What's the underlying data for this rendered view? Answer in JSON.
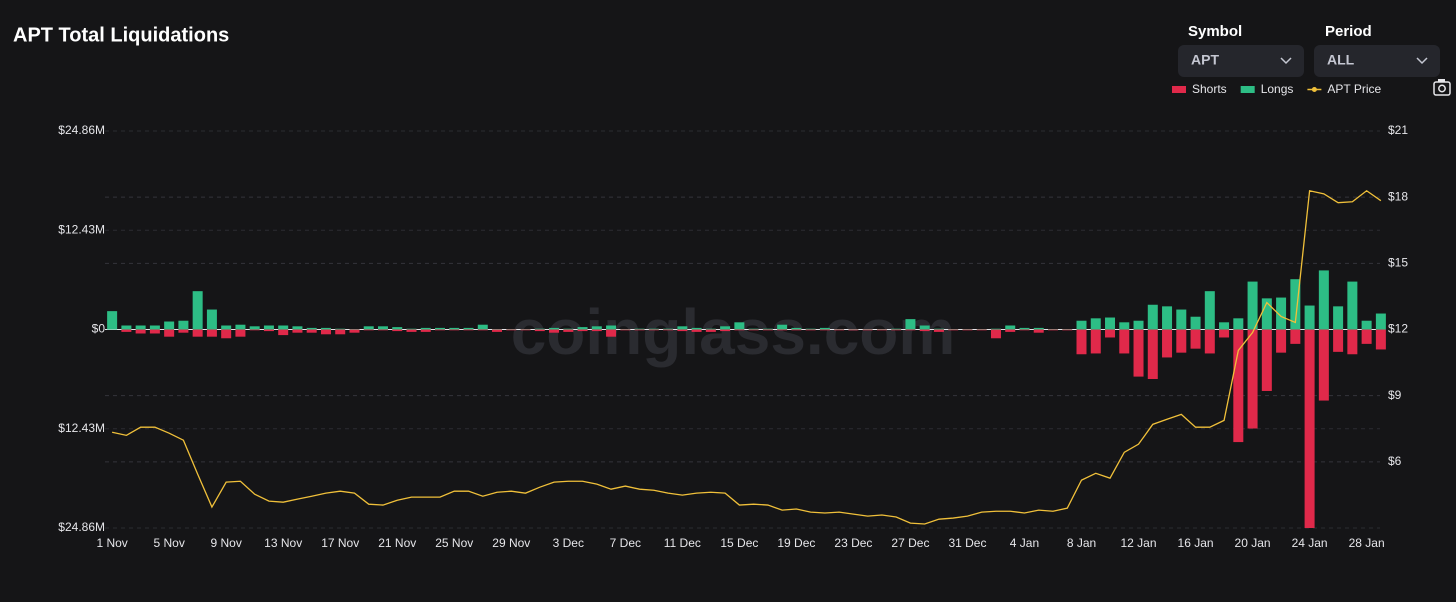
{
  "chart_data": {
    "type": "bar",
    "title": "APT Total Liquidations",
    "watermark": "coinglass.com",
    "categories": [
      "1 Nov",
      null,
      null,
      null,
      "5 Nov",
      null,
      null,
      null,
      "9 Nov",
      null,
      null,
      null,
      "13 Nov",
      null,
      null,
      null,
      "17 Nov",
      null,
      null,
      null,
      "21 Nov",
      null,
      null,
      null,
      "25 Nov",
      null,
      null,
      null,
      "29 Nov",
      null,
      null,
      null,
      "3 Dec",
      null,
      null,
      null,
      "7 Dec",
      null,
      null,
      null,
      "11 Dec",
      null,
      null,
      null,
      "15 Dec",
      null,
      null,
      null,
      "19 Dec",
      null,
      null,
      null,
      "23 Dec",
      null,
      null,
      null,
      "27 Dec",
      null,
      null,
      null,
      "31 Dec",
      null,
      null,
      null,
      "4 Jan",
      null,
      null,
      null,
      "8 Jan",
      null,
      null,
      null,
      "12 Jan",
      null,
      null,
      null,
      "16 Jan",
      null,
      null,
      null,
      "20 Jan",
      null,
      null,
      null,
      "24 Jan",
      null,
      null,
      null,
      "28 Jan",
      null
    ],
    "series": [
      {
        "name": "Shorts",
        "type": "bar",
        "color": "#e0294a",
        "values": [
          0,
          -0.3,
          -0.5,
          -0.5,
          -0.9,
          -0.4,
          -0.9,
          -0.9,
          -1.1,
          -0.9,
          -0.1,
          -0.2,
          -0.7,
          -0.4,
          -0.4,
          -0.6,
          -0.6,
          -0.4,
          -0.1,
          -0.1,
          -0.2,
          -0.3,
          -0.3,
          -0.1,
          -0.1,
          -0.1,
          -0.1,
          -0.3,
          -0.1,
          -0.1,
          -0.2,
          -0.4,
          -0.3,
          -0.2,
          -0.2,
          -0.9,
          -0.1,
          -0.1,
          -0.1,
          -0.1,
          -0.2,
          -0.3,
          -0.3,
          -0.2,
          -0.1,
          -0.1,
          -0.1,
          -0.1,
          -0.1,
          -0.1,
          -0.1,
          -0.1,
          -0.1,
          -0.1,
          -0.1,
          -0.1,
          -0.1,
          -0.2,
          -0.3,
          -0.1,
          -0.1,
          -0.1,
          -1.1,
          -0.3,
          -0.1,
          -0.4,
          -0.1,
          -0.1,
          -3.1,
          -3.0,
          -1.0,
          -3.0,
          -5.9,
          -6.2,
          -3.5,
          -2.9,
          -2.4,
          -3.0,
          -1.0,
          -14.1,
          -12.4,
          -7.7,
          -2.9,
          -1.8,
          -24.86,
          -8.9,
          -2.8,
          -3.1,
          -1.8,
          -2.5
        ]
      },
      {
        "name": "Longs",
        "type": "bar",
        "color": "#2dbd85",
        "values": [
          2.3,
          0.5,
          0.5,
          0.5,
          1.0,
          1.1,
          4.8,
          2.5,
          0.5,
          0.6,
          0.4,
          0.5,
          0.5,
          0.4,
          0.2,
          0.2,
          0.1,
          0.05,
          0.4,
          0.4,
          0.3,
          0.1,
          0.2,
          0.2,
          0.2,
          0.2,
          0.6,
          0.05,
          0.05,
          0.05,
          0.1,
          0.2,
          0.1,
          0.3,
          0.4,
          0.5,
          0.05,
          0.1,
          0.1,
          0.1,
          0.4,
          0.2,
          0.1,
          0.4,
          0.9,
          0.1,
          0.1,
          0.6,
          0.2,
          0.1,
          0.2,
          0.05,
          0.05,
          0.05,
          0.05,
          0.1,
          1.3,
          0.5,
          0.1,
          0.05,
          0.05,
          0.05,
          0.1,
          0.5,
          0.2,
          0.2,
          0.05,
          0.05,
          1.1,
          1.4,
          1.5,
          0.9,
          1.1,
          3.1,
          2.9,
          2.5,
          1.6,
          4.8,
          0.9,
          1.4,
          6.0,
          3.9,
          4.0,
          6.3,
          3.0,
          7.4,
          2.9,
          6.0,
          1.1,
          2.0
        ]
      },
      {
        "name": "APT Price",
        "type": "line",
        "axis": "y2",
        "color": "#f0c03a",
        "values": [
          7.34,
          7.2,
          7.57,
          7.57,
          7.3,
          6.98,
          5.44,
          3.95,
          5.08,
          5.12,
          4.53,
          4.22,
          4.17,
          4.31,
          4.44,
          4.58,
          4.67,
          4.58,
          4.08,
          4.04,
          4.26,
          4.4,
          4.4,
          4.4,
          4.67,
          4.67,
          4.44,
          4.62,
          4.67,
          4.58,
          4.85,
          5.08,
          5.12,
          5.12,
          4.99,
          4.76,
          4.9,
          4.76,
          4.71,
          4.58,
          4.49,
          4.58,
          4.62,
          4.58,
          4.04,
          4.08,
          4.04,
          3.81,
          3.86,
          3.72,
          3.68,
          3.72,
          3.63,
          3.54,
          3.59,
          3.5,
          3.22,
          3.18,
          3.4,
          3.45,
          3.54,
          3.72,
          3.76,
          3.76,
          3.68,
          3.81,
          3.76,
          3.9,
          5.17,
          5.48,
          5.26,
          6.43,
          6.8,
          7.7,
          7.93,
          8.15,
          7.57,
          7.57,
          7.88,
          11.05,
          11.86,
          13.22,
          12.59,
          12.32,
          18.29,
          18.15,
          17.75,
          17.79,
          18.29,
          17.84
        ]
      }
    ],
    "ylim": [
      -24.86,
      24.86
    ],
    "yticks": [
      {
        "value": 24.86,
        "label": "$24.86M"
      },
      {
        "value": 12.43,
        "label": "$12.43M"
      },
      {
        "value": 0,
        "label": "$0"
      },
      {
        "value": -12.43,
        "label": "$12.43M"
      },
      {
        "value": -24.86,
        "label": "$24.86M"
      }
    ],
    "y2lim": [
      3,
      21
    ],
    "y2ticks": [
      {
        "value": 21,
        "label": "$21"
      },
      {
        "value": 18,
        "label": "$18"
      },
      {
        "value": 15,
        "label": "$15"
      },
      {
        "value": 12,
        "label": "$12"
      },
      {
        "value": 9,
        "label": "$9"
      },
      {
        "value": 6,
        "label": "$6"
      }
    ],
    "grid": true
  },
  "controls": {
    "symbol": {
      "label": "Symbol",
      "value": "APT"
    },
    "period": {
      "label": "Period",
      "value": "ALL"
    }
  }
}
